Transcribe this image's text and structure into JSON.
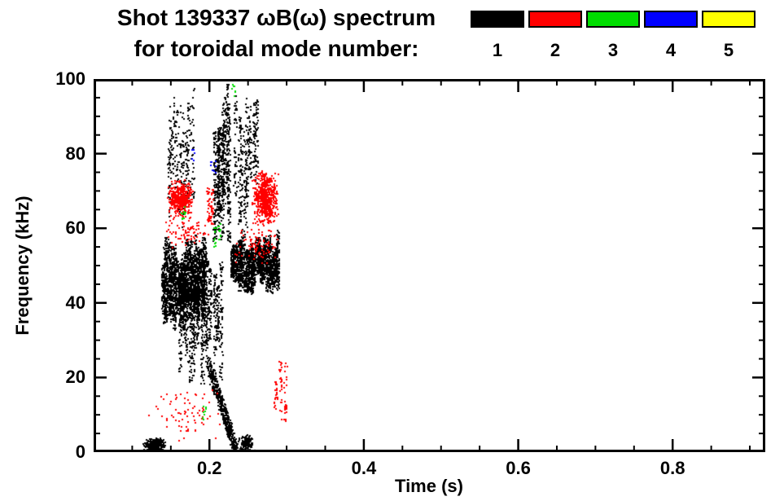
{
  "header": {
    "title": "Shot 139337 ωB(ω) spectrum",
    "subtitle": "for toroidal mode number:"
  },
  "chart_data": {
    "type": "scatter",
    "title": "Shot 139337 ωB(ω) spectrum for toroidal mode number",
    "xlabel": "Time (s)",
    "ylabel": "Frequency (kHz)",
    "xlim": [
      0.05,
      0.92
    ],
    "ylim": [
      0,
      100
    ],
    "x_major_ticks": [
      0.2,
      0.4,
      0.6,
      0.8
    ],
    "x_minor_step": 0.05,
    "y_major_ticks": [
      0,
      20,
      40,
      60,
      80,
      100
    ],
    "y_minor_step": 5,
    "grid": false,
    "legend_position": "top-right",
    "legend": [
      {
        "label": "1",
        "color": "#000000"
      },
      {
        "label": "2",
        "color": "#ff0000"
      },
      {
        "label": "3",
        "color": "#00dd00"
      },
      {
        "label": "4",
        "color": "#0000ff"
      },
      {
        "label": "5",
        "color": "#ffff00"
      }
    ],
    "clusters": [
      {
        "mode": 1,
        "color": "#000000",
        "style": "blob",
        "t": [
          0.112,
          0.142
        ],
        "f": [
          0,
          4
        ],
        "n": 260
      },
      {
        "mode": 1,
        "color": "#000000",
        "style": "cols",
        "t": [
          0.138,
          0.195
        ],
        "f": [
          31,
          60
        ],
        "n": 2200,
        "cols": 24
      },
      {
        "mode": 1,
        "color": "#000000",
        "style": "cols",
        "t": [
          0.145,
          0.178
        ],
        "f": [
          60,
          100
        ],
        "n": 300,
        "cols": 10
      },
      {
        "mode": 1,
        "color": "#000000",
        "style": "cols",
        "t": [
          0.16,
          0.215
        ],
        "f": [
          17,
          58
        ],
        "n": 850,
        "cols": 14
      },
      {
        "mode": 1,
        "color": "#000000",
        "style": "cols",
        "t": [
          0.205,
          0.226
        ],
        "f": [
          55,
          100
        ],
        "n": 650,
        "cols": 7
      },
      {
        "mode": 1,
        "color": "#000000",
        "style": "chirp",
        "t": [
          0.195,
          0.235
        ],
        "f": [
          0,
          25
        ],
        "n": 520
      },
      {
        "mode": 1,
        "color": "#000000",
        "style": "cols",
        "t": [
          0.228,
          0.29
        ],
        "f": [
          42,
          60
        ],
        "n": 1800,
        "cols": 22
      },
      {
        "mode": 1,
        "color": "#000000",
        "style": "cols",
        "t": [
          0.232,
          0.262
        ],
        "f": [
          60,
          100
        ],
        "n": 360,
        "cols": 8
      },
      {
        "mode": 1,
        "color": "#000000",
        "style": "blob",
        "t": [
          0.235,
          0.258
        ],
        "f": [
          0,
          5
        ],
        "n": 130
      },
      {
        "mode": 2,
        "color": "#ff0000",
        "style": "blob",
        "t": [
          0.145,
          0.178
        ],
        "f": [
          63,
          73
        ],
        "n": 450
      },
      {
        "mode": 2,
        "color": "#ff0000",
        "style": "blob",
        "t": [
          0.14,
          0.2
        ],
        "f": [
          55,
          63
        ],
        "n": 80
      },
      {
        "mode": 2,
        "color": "#ff0000",
        "style": "blob",
        "t": [
          0.12,
          0.22
        ],
        "f": [
          3,
          18
        ],
        "n": 80
      },
      {
        "mode": 2,
        "color": "#ff0000",
        "style": "cols",
        "t": [
          0.196,
          0.206
        ],
        "f": [
          60,
          74
        ],
        "n": 60,
        "cols": 2
      },
      {
        "mode": 2,
        "color": "#ff0000",
        "style": "blob",
        "t": [
          0.255,
          0.288
        ],
        "f": [
          61,
          76
        ],
        "n": 620
      },
      {
        "mode": 2,
        "color": "#ff0000",
        "style": "blob",
        "t": [
          0.23,
          0.292
        ],
        "f": [
          50,
          62
        ],
        "n": 90
      },
      {
        "mode": 2,
        "color": "#ff0000",
        "style": "cols",
        "t": [
          0.282,
          0.3
        ],
        "f": [
          5,
          25
        ],
        "n": 70,
        "cols": 3
      },
      {
        "mode": 3,
        "color": "#00dd00",
        "style": "blob",
        "t": [
          0.162,
          0.172
        ],
        "f": [
          62,
          67
        ],
        "n": 10
      },
      {
        "mode": 3,
        "color": "#00dd00",
        "style": "cols",
        "t": [
          0.205,
          0.215
        ],
        "f": [
          55,
          62
        ],
        "n": 22,
        "cols": 2
      },
      {
        "mode": 3,
        "color": "#00dd00",
        "style": "blob",
        "t": [
          0.228,
          0.234
        ],
        "f": [
          94,
          99
        ],
        "n": 8
      },
      {
        "mode": 3,
        "color": "#00dd00",
        "style": "blob",
        "t": [
          0.19,
          0.198
        ],
        "f": [
          8,
          14
        ],
        "n": 8
      },
      {
        "mode": 4,
        "color": "#0000ff",
        "style": "blob",
        "t": [
          0.2,
          0.21
        ],
        "f": [
          73,
          79
        ],
        "n": 8
      },
      {
        "mode": 4,
        "color": "#0000ff",
        "style": "blob",
        "t": [
          0.175,
          0.182
        ],
        "f": [
          78,
          83
        ],
        "n": 5
      }
    ]
  }
}
